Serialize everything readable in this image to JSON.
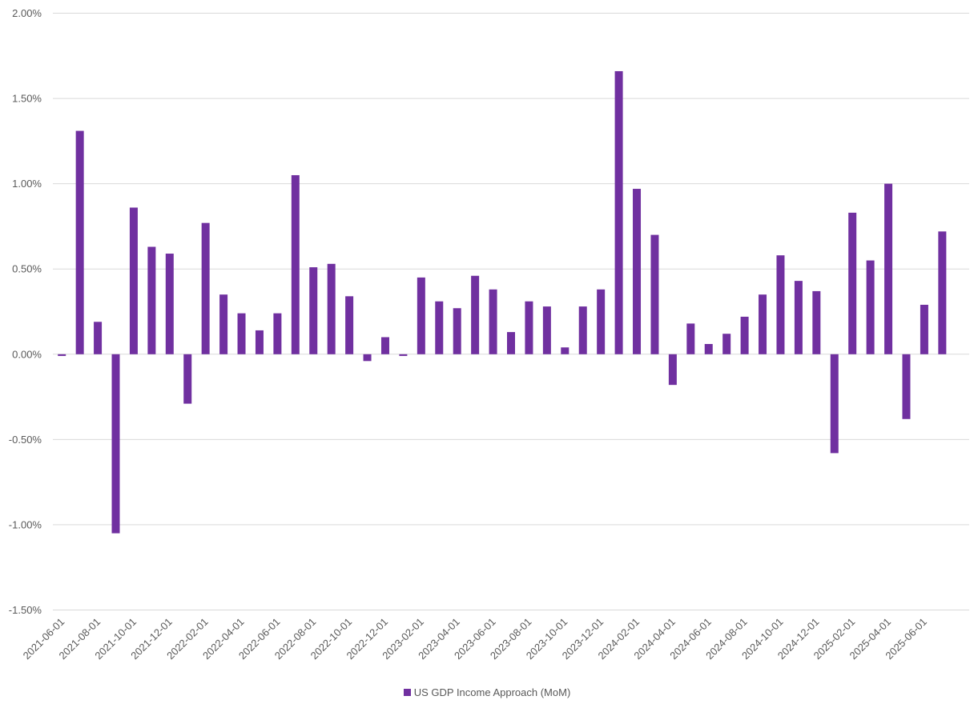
{
  "chart_data": {
    "type": "bar",
    "title": "",
    "xlabel": "",
    "ylabel": "",
    "ylim": [
      -0.015,
      0.02
    ],
    "yticks": [
      0.02,
      0.015,
      0.01,
      0.005,
      0.0,
      -0.005,
      -0.01,
      -0.015
    ],
    "ytick_labels": [
      "2.00%",
      "1.50%",
      "1.00%",
      "0.50%",
      "0.00%",
      "-0.50%",
      "-1.00%",
      "-1.50%"
    ],
    "xtick_labels": [
      "2021-06-01",
      "2021-08-01",
      "2021-10-01",
      "2021-12-01",
      "2022-02-01",
      "2022-04-01",
      "2022-06-01",
      "2022-08-01",
      "2022-10-01",
      "2022-12-01",
      "2023-02-01",
      "2023-04-01",
      "2023-06-01",
      "2023-08-01",
      "2023-10-01",
      "2023-12-01",
      "2024-02-01",
      "2024-04-01",
      "2024-06-01",
      "2024-08-01",
      "2024-10-01",
      "2024-12-01",
      "2025-02-01",
      "2025-04-01",
      "2025-06-01"
    ],
    "grid": true,
    "legend_position": "bottom",
    "categories": [
      "2021-06-01",
      "2021-07-01",
      "2021-08-01",
      "2021-09-01",
      "2021-10-01",
      "2021-11-01",
      "2021-12-01",
      "2022-01-01",
      "2022-02-01",
      "2022-03-01",
      "2022-04-01",
      "2022-05-01",
      "2022-06-01",
      "2022-07-01",
      "2022-08-01",
      "2022-09-01",
      "2022-10-01",
      "2022-11-01",
      "2022-12-01",
      "2023-01-01",
      "2023-02-01",
      "2023-03-01",
      "2023-04-01",
      "2023-05-01",
      "2023-06-01",
      "2023-07-01",
      "2023-08-01",
      "2023-09-01",
      "2023-10-01",
      "2023-11-01",
      "2023-12-01",
      "2024-01-01",
      "2024-02-01",
      "2024-03-01",
      "2024-04-01",
      "2024-05-01",
      "2024-06-01",
      "2024-07-01",
      "2024-08-01",
      "2024-09-01",
      "2024-10-01",
      "2024-11-01",
      "2024-12-01",
      "2025-01-01",
      "2025-02-01",
      "2025-03-01",
      "2025-04-01",
      "2025-05-01",
      "2025-06-01",
      "2025-07-01",
      "2025-08-01"
    ],
    "series": [
      {
        "name": "US GDP Income Approach (MoM)",
        "color": "#7030a0",
        "values": [
          -0.0001,
          0.0131,
          0.0019,
          -0.0105,
          0.0086,
          0.0063,
          0.0059,
          -0.0029,
          0.0077,
          0.0035,
          0.0024,
          0.0014,
          0.0024,
          0.0105,
          0.0051,
          0.0053,
          0.0034,
          -0.0004,
          0.001,
          -0.0001,
          0.0045,
          0.0031,
          0.0027,
          0.0046,
          0.0038,
          0.0013,
          0.0031,
          0.0028,
          0.0004,
          0.0028,
          0.0038,
          0.0166,
          0.0097,
          0.007,
          -0.0018,
          0.0018,
          0.0006,
          0.0012,
          0.0022,
          0.0035,
          0.0058,
          0.0043,
          0.0037,
          -0.0058,
          0.0083,
          0.0055,
          0.01,
          -0.0038,
          0.0029,
          0.0072,
          null
        ]
      }
    ]
  },
  "legend": {
    "label": "US GDP Income Approach (MoM)",
    "color": "#7030a0"
  }
}
